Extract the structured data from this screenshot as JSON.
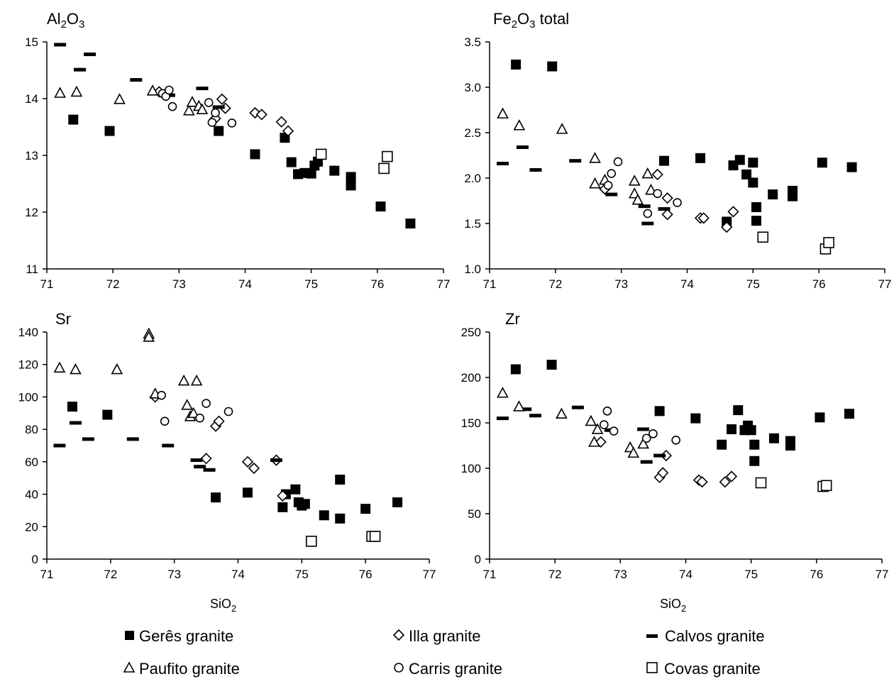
{
  "legend": [
    {
      "name": "Gerês granite",
      "marker": "filled-square"
    },
    {
      "name": "Illa granite",
      "marker": "diamond"
    },
    {
      "name": "Calvos granite",
      "marker": "dash"
    },
    {
      "name": "Paufito granite",
      "marker": "triangle"
    },
    {
      "name": "Carris granite",
      "marker": "circle"
    },
    {
      "name": "Covas granite",
      "marker": "open-square"
    }
  ],
  "chart_data": [
    {
      "type": "scatter",
      "title": "Al2O3",
      "title_main": "Al",
      "title_sub1": "2",
      "title_mid": "O",
      "title_sub2": "3",
      "title_rest": "",
      "xlabel": "",
      "ylabel": "",
      "xlim": [
        71,
        77
      ],
      "ylim": [
        11,
        15
      ],
      "xticks": [
        "71",
        "72",
        "73",
        "74",
        "75",
        "76",
        "77"
      ],
      "yticks": [
        "11",
        "12",
        "13",
        "14",
        "15"
      ],
      "grid": false,
      "series": [
        {
          "name": "Gerês granite",
          "marker": "filled-square",
          "points": [
            [
              71.4,
              13.63
            ],
            [
              71.95,
              13.43
            ],
            [
              73.6,
              13.43
            ],
            [
              74.15,
              13.02
            ],
            [
              74.6,
              13.31
            ],
            [
              74.7,
              12.88
            ],
            [
              74.8,
              12.67
            ],
            [
              74.9,
              12.69
            ],
            [
              75.0,
              12.68
            ],
            [
              75.05,
              12.82
            ],
            [
              75.1,
              12.89
            ],
            [
              75.35,
              12.73
            ],
            [
              75.6,
              12.47
            ],
            [
              75.6,
              12.62
            ],
            [
              76.05,
              12.1
            ],
            [
              76.5,
              11.8
            ]
          ]
        },
        {
          "name": "Illa granite",
          "marker": "diamond",
          "points": [
            [
              72.7,
              14.12
            ],
            [
              73.55,
              13.65
            ],
            [
              73.65,
              13.99
            ],
            [
              73.7,
              13.83
            ],
            [
              74.15,
              13.75
            ],
            [
              74.25,
              13.72
            ],
            [
              74.55,
              13.59
            ],
            [
              74.65,
              13.43
            ]
          ]
        },
        {
          "name": "Calvos granite",
          "marker": "dash",
          "points": [
            [
              71.2,
              14.95
            ],
            [
              71.5,
              14.51
            ],
            [
              71.65,
              14.78
            ],
            [
              72.35,
              14.33
            ],
            [
              72.85,
              14.06
            ],
            [
              73.35,
              14.18
            ],
            [
              73.6,
              13.85
            ]
          ]
        },
        {
          "name": "Paufito granite",
          "marker": "triangle",
          "points": [
            [
              71.2,
              14.1
            ],
            [
              71.45,
              14.12
            ],
            [
              72.1,
              13.99
            ],
            [
              72.6,
              14.14
            ],
            [
              73.15,
              13.79
            ],
            [
              73.2,
              13.94
            ],
            [
              73.3,
              13.87
            ],
            [
              73.35,
              13.81
            ]
          ]
        },
        {
          "name": "Carris granite",
          "marker": "circle",
          "points": [
            [
              72.75,
              14.09
            ],
            [
              72.8,
              14.04
            ],
            [
              72.85,
              14.15
            ],
            [
              72.9,
              13.86
            ],
            [
              73.45,
              13.93
            ],
            [
              73.5,
              13.58
            ],
            [
              73.55,
              13.75
            ],
            [
              73.8,
              13.57
            ]
          ]
        },
        {
          "name": "Covas granite",
          "marker": "open-square",
          "points": [
            [
              75.15,
              13.02
            ],
            [
              76.1,
              12.77
            ],
            [
              76.15,
              12.98
            ]
          ]
        }
      ]
    },
    {
      "type": "scatter",
      "title": "Fe2O3 total",
      "title_main": "Fe",
      "title_sub1": "2",
      "title_mid": "O",
      "title_sub2": "3",
      "title_rest": " total",
      "xlabel": "",
      "ylabel": "",
      "xlim": [
        71,
        77
      ],
      "ylim": [
        1.0,
        3.5
      ],
      "xticks": [
        "71",
        "72",
        "73",
        "74",
        "75",
        "76",
        "77"
      ],
      "yticks": [
        "1.0",
        "1.5",
        "2.0",
        "2.5",
        "3.0",
        "3.5"
      ],
      "grid": false,
      "series": [
        {
          "name": "Gerês granite",
          "marker": "filled-square",
          "points": [
            [
              71.4,
              3.25
            ],
            [
              71.95,
              3.23
            ],
            [
              73.65,
              2.19
            ],
            [
              74.2,
              2.22
            ],
            [
              74.6,
              1.52
            ],
            [
              74.7,
              2.14
            ],
            [
              74.8,
              2.2
            ],
            [
              74.9,
              2.04
            ],
            [
              75.0,
              2.17
            ],
            [
              75.0,
              1.95
            ],
            [
              75.05,
              1.68
            ],
            [
              75.05,
              1.53
            ],
            [
              75.3,
              1.82
            ],
            [
              75.6,
              1.8
            ],
            [
              75.6,
              1.86
            ],
            [
              76.05,
              2.17
            ],
            [
              76.5,
              2.12
            ]
          ]
        },
        {
          "name": "Illa granite",
          "marker": "diamond",
          "points": [
            [
              72.75,
              1.88
            ],
            [
              73.55,
              2.04
            ],
            [
              73.7,
              1.6
            ],
            [
              73.7,
              1.78
            ],
            [
              74.2,
              1.56
            ],
            [
              74.25,
              1.56
            ],
            [
              74.6,
              1.46
            ],
            [
              74.7,
              1.63
            ]
          ]
        },
        {
          "name": "Calvos granite",
          "marker": "dash",
          "points": [
            [
              71.2,
              2.16
            ],
            [
              71.5,
              2.34
            ],
            [
              71.7,
              2.09
            ],
            [
              72.3,
              2.19
            ],
            [
              72.85,
              1.82
            ],
            [
              73.35,
              1.69
            ],
            [
              73.4,
              1.5
            ],
            [
              73.65,
              1.66
            ]
          ]
        },
        {
          "name": "Paufito granite",
          "marker": "triangle",
          "points": [
            [
              71.2,
              2.71
            ],
            [
              71.45,
              2.58
            ],
            [
              72.1,
              2.54
            ],
            [
              72.6,
              2.22
            ],
            [
              72.6,
              1.94
            ],
            [
              72.75,
              1.98
            ],
            [
              73.2,
              1.97
            ],
            [
              73.2,
              1.83
            ],
            [
              73.25,
              1.76
            ],
            [
              73.4,
              2.05
            ],
            [
              73.45,
              1.87
            ]
          ]
        },
        {
          "name": "Carris granite",
          "marker": "circle",
          "points": [
            [
              72.8,
              1.92
            ],
            [
              72.85,
              2.05
            ],
            [
              72.95,
              2.18
            ],
            [
              73.4,
              1.61
            ],
            [
              73.55,
              1.83
            ],
            [
              73.85,
              1.73
            ]
          ]
        },
        {
          "name": "Covas granite",
          "marker": "open-square",
          "points": [
            [
              75.15,
              1.35
            ],
            [
              76.1,
              1.22
            ],
            [
              76.15,
              1.29
            ]
          ]
        }
      ]
    },
    {
      "type": "scatter",
      "title": "Sr",
      "title_main": "Sr",
      "title_sub1": "",
      "title_mid": "",
      "title_sub2": "",
      "title_rest": "",
      "xlabel": "SiO2",
      "xlabel_main": "SiO",
      "xlabel_sub": "2",
      "ylabel": "",
      "xlim": [
        71,
        77
      ],
      "ylim": [
        0,
        140
      ],
      "xticks": [
        "71",
        "72",
        "73",
        "74",
        "75",
        "76",
        "77"
      ],
      "yticks": [
        "0",
        "20",
        "40",
        "60",
        "80",
        "100",
        "120",
        "140"
      ],
      "grid": false,
      "series": [
        {
          "name": "Gerês granite",
          "marker": "filled-square",
          "points": [
            [
              71.4,
              94
            ],
            [
              71.95,
              89
            ],
            [
              73.65,
              38
            ],
            [
              74.15,
              41
            ],
            [
              74.7,
              32
            ],
            [
              74.75,
              40
            ],
            [
              74.9,
              43
            ],
            [
              74.95,
              35
            ],
            [
              75.0,
              33
            ],
            [
              75.05,
              34
            ],
            [
              75.35,
              27
            ],
            [
              75.6,
              49
            ],
            [
              75.6,
              25
            ],
            [
              76.0,
              31
            ],
            [
              76.5,
              35
            ]
          ]
        },
        {
          "name": "Illa granite",
          "marker": "diamond",
          "points": [
            [
              72.7,
              100
            ],
            [
              73.5,
              62
            ],
            [
              73.65,
              82
            ],
            [
              73.7,
              85
            ],
            [
              74.15,
              60
            ],
            [
              74.25,
              56
            ],
            [
              74.6,
              61
            ],
            [
              74.7,
              39
            ]
          ]
        },
        {
          "name": "Calvos granite",
          "marker": "dash",
          "points": [
            [
              71.2,
              70
            ],
            [
              71.45,
              84
            ],
            [
              71.65,
              74
            ],
            [
              72.35,
              74
            ],
            [
              72.9,
              70
            ],
            [
              73.35,
              61
            ],
            [
              73.4,
              57
            ],
            [
              73.55,
              55
            ],
            [
              74.6,
              61
            ]
          ]
        },
        {
          "name": "Paufito granite",
          "marker": "triangle",
          "points": [
            [
              71.2,
              118
            ],
            [
              71.45,
              117
            ],
            [
              72.1,
              117
            ],
            [
              72.6,
              139
            ],
            [
              72.6,
              137
            ],
            [
              72.7,
              102
            ],
            [
              73.15,
              110
            ],
            [
              73.2,
              95
            ],
            [
              73.25,
              88
            ],
            [
              73.3,
              90
            ],
            [
              73.35,
              110
            ]
          ]
        },
        {
          "name": "Carris granite",
          "marker": "circle",
          "points": [
            [
              72.8,
              101
            ],
            [
              72.85,
              85
            ],
            [
              73.4,
              87
            ],
            [
              73.5,
              96
            ],
            [
              73.85,
              91
            ]
          ]
        },
        {
          "name": "Covas granite",
          "marker": "open-square",
          "points": [
            [
              75.15,
              11
            ],
            [
              76.1,
              14
            ],
            [
              76.15,
              14
            ]
          ]
        }
      ]
    },
    {
      "type": "scatter",
      "title": "Zr",
      "title_main": "Zr",
      "title_sub1": "",
      "title_mid": "",
      "title_sub2": "",
      "title_rest": "",
      "xlabel": "SiO2",
      "xlabel_main": "SiO",
      "xlabel_sub": "2",
      "ylabel": "",
      "xlim": [
        71,
        77
      ],
      "ylim": [
        0,
        250
      ],
      "xticks": [
        "71",
        "72",
        "73",
        "74",
        "75",
        "76",
        "77"
      ],
      "yticks": [
        "0",
        "50",
        "100",
        "150",
        "200",
        "250"
      ],
      "grid": false,
      "series": [
        {
          "name": "Gerês granite",
          "marker": "filled-square",
          "points": [
            [
              71.4,
              209
            ],
            [
              71.95,
              214
            ],
            [
              73.6,
              163
            ],
            [
              74.15,
              155
            ],
            [
              74.55,
              126
            ],
            [
              74.7,
              143
            ],
            [
              74.8,
              164
            ],
            [
              74.9,
              142
            ],
            [
              74.95,
              147
            ],
            [
              75.0,
              142
            ],
            [
              75.05,
              126
            ],
            [
              75.05,
              108
            ],
            [
              75.35,
              133
            ],
            [
              75.6,
              125
            ],
            [
              75.6,
              130
            ],
            [
              76.05,
              156
            ],
            [
              76.5,
              160
            ]
          ]
        },
        {
          "name": "Illa granite",
          "marker": "diamond",
          "points": [
            [
              72.7,
              129
            ],
            [
              73.6,
              90
            ],
            [
              73.65,
              95
            ],
            [
              73.7,
              114
            ],
            [
              74.2,
              87
            ],
            [
              74.25,
              85
            ],
            [
              74.6,
              85
            ],
            [
              74.7,
              91
            ]
          ]
        },
        {
          "name": "Calvos granite",
          "marker": "dash",
          "points": [
            [
              71.2,
              155
            ],
            [
              71.55,
              165
            ],
            [
              71.7,
              158
            ],
            [
              72.35,
              167
            ],
            [
              72.85,
              142
            ],
            [
              73.35,
              143
            ],
            [
              73.4,
              107
            ],
            [
              73.6,
              114
            ]
          ]
        },
        {
          "name": "Paufito granite",
          "marker": "triangle",
          "points": [
            [
              71.2,
              183
            ],
            [
              71.45,
              168
            ],
            [
              72.1,
              160
            ],
            [
              72.55,
              152
            ],
            [
              72.6,
              129
            ],
            [
              72.65,
              143
            ],
            [
              73.15,
              123
            ],
            [
              73.2,
              117
            ],
            [
              73.35,
              127
            ]
          ]
        },
        {
          "name": "Carris granite",
          "marker": "circle",
          "points": [
            [
              72.75,
              148
            ],
            [
              72.8,
              163
            ],
            [
              72.9,
              141
            ],
            [
              73.4,
              133
            ],
            [
              73.5,
              138
            ],
            [
              73.85,
              131
            ]
          ]
        },
        {
          "name": "Covas granite",
          "marker": "open-square",
          "points": [
            [
              75.15,
              84
            ],
            [
              76.1,
              80
            ],
            [
              76.15,
              81
            ]
          ]
        }
      ]
    }
  ]
}
